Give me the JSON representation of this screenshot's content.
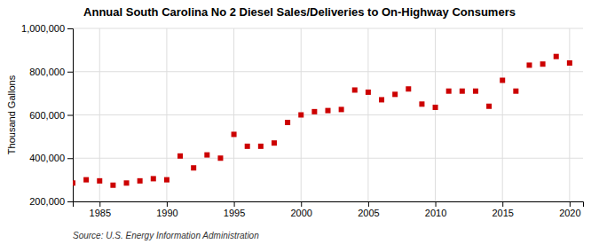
{
  "chart_data": {
    "type": "scatter",
    "title": "Annual South Carolina No 2 Diesel Sales/Deliveries to On-Highway Consumers",
    "ylabel": "Thousand Gallons",
    "annotation": "Source: U.S. Energy Information Administration",
    "x": [
      1983,
      1984,
      1985,
      1986,
      1987,
      1988,
      1989,
      1990,
      1991,
      1992,
      1993,
      1994,
      1995,
      1996,
      1997,
      1998,
      1999,
      2000,
      2001,
      2002,
      2003,
      2004,
      2005,
      2006,
      2007,
      2008,
      2009,
      2010,
      2011,
      2012,
      2013,
      2014,
      2015,
      2016,
      2017,
      2018,
      2019,
      2020
    ],
    "values": [
      285000,
      300000,
      295000,
      275000,
      285000,
      295000,
      305000,
      300000,
      410000,
      355000,
      415000,
      400000,
      510000,
      455000,
      455000,
      470000,
      565000,
      600000,
      615000,
      620000,
      625000,
      715000,
      705000,
      670000,
      695000,
      720000,
      650000,
      635000,
      710000,
      710000,
      710000,
      640000,
      760000,
      710000,
      830000,
      835000,
      870000,
      840000
    ],
    "color": "#cc0000",
    "marker": "square",
    "xlim": [
      1983,
      2021
    ],
    "ylim": [
      200000,
      1000000
    ],
    "xticks": [
      1985,
      1990,
      1995,
      2000,
      2005,
      2010,
      2015,
      2020
    ],
    "yticks": [
      {
        "value": 200000,
        "label": "200,000"
      },
      {
        "value": 400000,
        "label": "400,000"
      },
      {
        "value": 600000,
        "label": "600,000"
      },
      {
        "value": 800000,
        "label": "800,000"
      },
      {
        "value": 1000000,
        "label": "1,000,000"
      }
    ],
    "grid": true
  }
}
